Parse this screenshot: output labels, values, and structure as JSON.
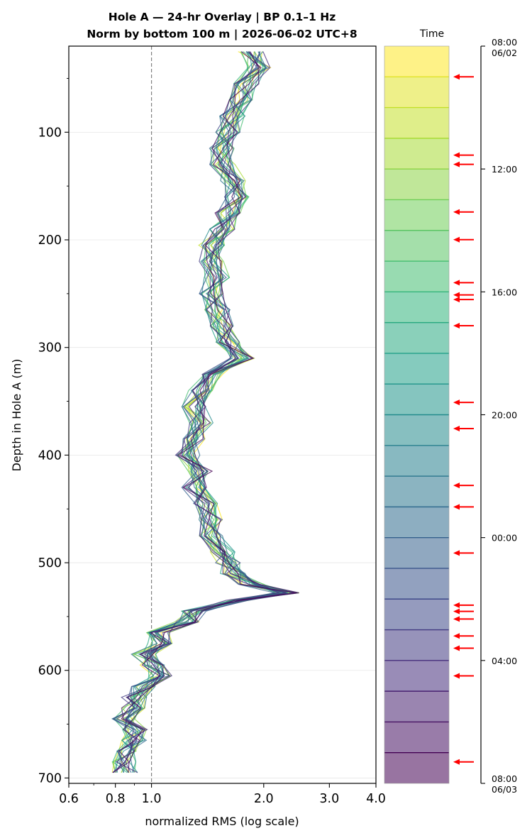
{
  "chart_data": {
    "type": "line",
    "title_line1": "Hole A — 24-hr Overlay  |  BP 0.1–1 Hz",
    "title_line2": "Norm by bottom 100 m  |  2026-06-02 UTC+8",
    "xlabel": "normalized RMS  (log scale)",
    "ylabel": "Depth in Hole A (m)",
    "x_scale": "log",
    "xlim": [
      0.6,
      4.0
    ],
    "ylim": [
      705,
      20
    ],
    "y_inverted": true,
    "x_ticks": [
      0.6,
      0.8,
      1.0,
      2.0,
      3.0,
      4.0
    ],
    "x_tick_labels": [
      "0.6",
      "0.8",
      "1.0",
      "2.0",
      "3.0",
      "4.0"
    ],
    "y_ticks": [
      100,
      200,
      300,
      400,
      500,
      600,
      700
    ],
    "y_tick_labels": [
      "100",
      "200",
      "300",
      "400",
      "500",
      "600",
      "700"
    ],
    "reference_line_x": 1.0,
    "grid": "horizontal at major y ticks",
    "n_series": 24,
    "colormap": "viridis",
    "profile_depths": [
      25,
      40,
      55,
      70,
      85,
      100,
      115,
      130,
      145,
      160,
      175,
      190,
      205,
      220,
      235,
      250,
      265,
      280,
      295,
      310,
      325,
      340,
      355,
      370,
      385,
      400,
      415,
      430,
      445,
      460,
      475,
      490,
      500,
      510,
      520,
      528,
      535,
      545,
      555,
      565,
      575,
      585,
      595,
      605,
      615,
      625,
      635,
      645,
      655,
      665,
      675,
      685,
      695
    ],
    "profile_median_rms": [
      1.85,
      1.95,
      1.8,
      1.75,
      1.65,
      1.6,
      1.55,
      1.55,
      1.65,
      1.7,
      1.6,
      1.55,
      1.45,
      1.45,
      1.5,
      1.45,
      1.5,
      1.55,
      1.6,
      1.75,
      1.45,
      1.35,
      1.3,
      1.35,
      1.3,
      1.25,
      1.35,
      1.3,
      1.4,
      1.45,
      1.45,
      1.55,
      1.6,
      1.65,
      1.85,
      2.3,
      1.7,
      1.3,
      1.25,
      1.05,
      1.05,
      0.95,
      1.0,
      1.05,
      0.95,
      0.9,
      0.9,
      0.85,
      0.9,
      0.9,
      0.85,
      0.85,
      0.85
    ],
    "colorbar": {
      "title": "Time",
      "top_label_time": "08:00",
      "top_label_date": "06/02",
      "bottom_label_time": "08:00",
      "bottom_label_date": "06/03",
      "tick_labels": [
        "12:00",
        "16:00",
        "20:00",
        "00:00",
        "04:00"
      ],
      "tick_hours": [
        4,
        8,
        12,
        16,
        20
      ],
      "bands": 24,
      "marker_arrows_hours": [
        1.0,
        3.55,
        3.85,
        5.4,
        6.3,
        7.7,
        8.1,
        8.25,
        9.1,
        11.6,
        12.45,
        14.3,
        15.0,
        16.5,
        18.2,
        18.4,
        18.65,
        19.2,
        19.6,
        20.5,
        23.3
      ],
      "arrow_color": "#ff0000"
    },
    "colors": {
      "grid": "#e6e6e6",
      "reference_line": "#808080",
      "axis": "#000000"
    }
  }
}
